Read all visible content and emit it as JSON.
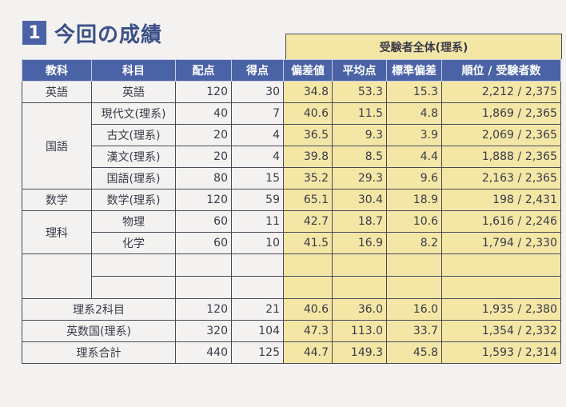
{
  "title": {
    "number": "1",
    "text": "今回の成績"
  },
  "group_header": "受験者全体(理系)",
  "columns": [
    "教科",
    "科目",
    "配点",
    "得点",
    "偏差値",
    "平均点",
    "標準偏差",
    "順位 / 受験者数"
  ],
  "rows": {
    "eigo": {
      "kyoka": "英語",
      "kamoku": "英語",
      "haiten": "120",
      "tokuten": "30",
      "hensachi": "34.8",
      "heikin": "53.3",
      "hyojun": "15.3",
      "rank": "2,212",
      "total": "2,375"
    },
    "gendaibun": {
      "kamoku": "現代文(理系)",
      "haiten": "40",
      "tokuten": "7",
      "hensachi": "40.6",
      "heikin": "11.5",
      "hyojun": "4.8",
      "rank": "1,869",
      "total": "2,365"
    },
    "kobun": {
      "kamoku": "古文(理系)",
      "haiten": "20",
      "tokuten": "4",
      "hensachi": "36.5",
      "heikin": "9.3",
      "hyojun": "3.9",
      "rank": "2,069",
      "total": "2,365"
    },
    "kanbun": {
      "kamoku": "漢文(理系)",
      "haiten": "20",
      "tokuten": "4",
      "hensachi": "39.8",
      "heikin": "8.5",
      "hyojun": "4.4",
      "rank": "1,888",
      "total": "2,365"
    },
    "kokugo": {
      "kyoka": "国語",
      "kamoku": "国語(理系)",
      "haiten": "80",
      "tokuten": "15",
      "hensachi": "35.2",
      "heikin": "29.3",
      "hyojun": "9.6",
      "rank": "2,163",
      "total": "2,365"
    },
    "sugaku": {
      "kyoka": "数学",
      "kamoku": "数学(理系)",
      "haiten": "120",
      "tokuten": "59",
      "hensachi": "65.1",
      "heikin": "30.4",
      "hyojun": "18.9",
      "rank": "198",
      "total": "2,431"
    },
    "butsuri": {
      "kyoka": "理科",
      "kamoku": "物理",
      "haiten": "60",
      "tokuten": "11",
      "hensachi": "42.7",
      "heikin": "18.7",
      "hyojun": "10.6",
      "rank": "1,616",
      "total": "2,246"
    },
    "kagaku": {
      "kamoku": "化学",
      "haiten": "60",
      "tokuten": "10",
      "hensachi": "41.5",
      "heikin": "16.9",
      "hyojun": "8.2",
      "rank": "1,794",
      "total": "2,330"
    }
  },
  "summary": {
    "rikei2": {
      "label": "理系2科目",
      "haiten": "120",
      "tokuten": "21",
      "hensachi": "40.6",
      "heikin": "36.0",
      "hyojun": "16.0",
      "rank": "1,935",
      "total": "2,380"
    },
    "eisukoku": {
      "label": "英数国(理系)",
      "haiten": "320",
      "tokuten": "104",
      "hensachi": "47.3",
      "heikin": "113.0",
      "hyojun": "33.7",
      "rank": "1,354",
      "total": "2,332"
    },
    "gokei": {
      "label": "理系合計",
      "haiten": "440",
      "tokuten": "125",
      "hensachi": "44.7",
      "heikin": "149.3",
      "hyojun": "45.8",
      "rank": "1,593",
      "total": "2,314"
    }
  },
  "rank_separator": "/"
}
